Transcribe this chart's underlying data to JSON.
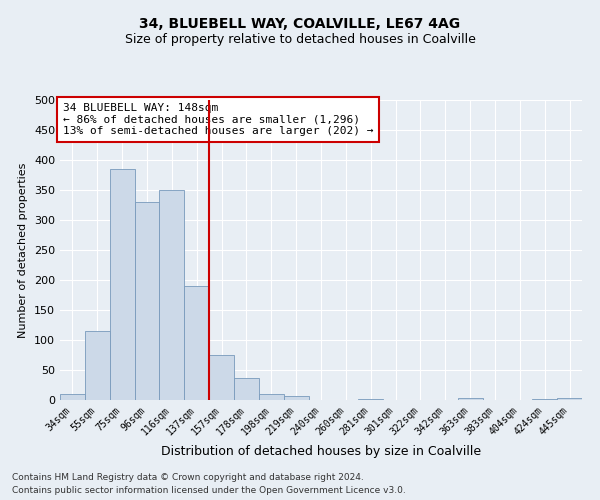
{
  "title": "34, BLUEBELL WAY, COALVILLE, LE67 4AG",
  "subtitle": "Size of property relative to detached houses in Coalville",
  "xlabel": "Distribution of detached houses by size in Coalville",
  "ylabel": "Number of detached properties",
  "footnote1": "Contains HM Land Registry data © Crown copyright and database right 2024.",
  "footnote2": "Contains public sector information licensed under the Open Government Licence v3.0.",
  "bar_labels": [
    "34sqm",
    "55sqm",
    "75sqm",
    "96sqm",
    "116sqm",
    "137sqm",
    "157sqm",
    "178sqm",
    "198sqm",
    "219sqm",
    "240sqm",
    "260sqm",
    "281sqm",
    "301sqm",
    "322sqm",
    "342sqm",
    "363sqm",
    "383sqm",
    "404sqm",
    "424sqm",
    "445sqm"
  ],
  "bar_values": [
    10,
    115,
    385,
    330,
    350,
    190,
    75,
    37,
    10,
    6,
    0,
    0,
    2,
    0,
    0,
    0,
    3,
    0,
    0,
    2,
    3
  ],
  "bar_color": "#ccd9e8",
  "bar_edge_color": "#7799bb",
  "vline_x_index": 5,
  "vline_color": "#cc0000",
  "ylim": [
    0,
    500
  ],
  "yticks": [
    0,
    50,
    100,
    150,
    200,
    250,
    300,
    350,
    400,
    450,
    500
  ],
  "annotation_title": "34 BLUEBELL WAY: 148sqm",
  "annotation_line1": "← 86% of detached houses are smaller (1,296)",
  "annotation_line2": "13% of semi-detached houses are larger (202) →",
  "annotation_box_color": "#ffffff",
  "annotation_box_edge": "#cc0000",
  "bg_color": "#e8eef4",
  "title_fontsize": 10,
  "subtitle_fontsize": 9,
  "ylabel_fontsize": 8,
  "xlabel_fontsize": 9,
  "ytick_fontsize": 8,
  "xtick_fontsize": 7,
  "annot_fontsize": 8,
  "footnote_fontsize": 6.5
}
